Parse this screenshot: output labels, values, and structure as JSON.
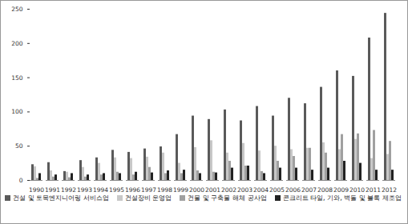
{
  "chart_data": {
    "type": "bar",
    "categories": [
      "1990",
      "1991",
      "1992",
      "1993",
      "1994",
      "1995",
      "1996",
      "1997",
      "1998",
      "1999",
      "2000",
      "2001",
      "2002",
      "2003",
      "2004",
      "2005",
      "2006",
      "2007",
      "2008",
      "2009",
      "2010",
      "2011",
      "2012"
    ],
    "series": [
      {
        "name": "건설 및 토목엔지니어링 서비스업",
        "color": "#5a5a5a",
        "values": [
          23,
          26,
          13,
          29,
          33,
          44,
          41,
          46,
          49,
          67,
          94,
          89,
          103,
          87,
          108,
          94,
          120,
          112,
          136,
          160,
          152,
          208,
          244
        ]
      },
      {
        "name": "건설장비 운영업",
        "color": "#c8c8c8",
        "values": [
          20,
          14,
          12,
          19,
          25,
          33,
          32,
          34,
          40,
          25,
          48,
          58,
          40,
          54,
          43,
          50,
          45,
          47,
          55,
          45,
          60,
          32,
          38
        ]
      },
      {
        "name": "건물 및 구축물 해체 공사업",
        "color": "#a0a0a0",
        "values": [
          3,
          5,
          4,
          5,
          8,
          12,
          8,
          19,
          10,
          10,
          14,
          12,
          28,
          21,
          13,
          28,
          35,
          47,
          40,
          67,
          68,
          73,
          57
        ]
      },
      {
        "name": "콘크리트 타일, 기와, 벽돌 및 블록 제조업",
        "color": "#222222",
        "values": [
          10,
          8,
          10,
          8,
          10,
          10,
          12,
          11,
          14,
          15,
          10,
          11,
          18,
          21,
          10,
          18,
          18,
          15,
          18,
          28,
          25,
          15,
          15
        ]
      }
    ],
    "ylim": [
      0,
      250
    ],
    "yticks": [
      0,
      50,
      100,
      150,
      200,
      250
    ],
    "grid": false,
    "legend": "bottom"
  }
}
